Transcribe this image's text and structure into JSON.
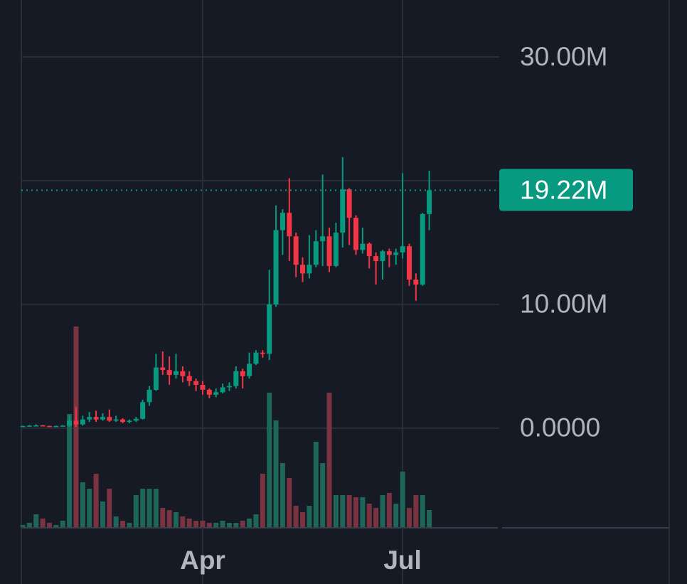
{
  "chart_data": {
    "type": "candlestick",
    "categories": [
      null,
      null,
      null,
      null,
      null,
      null,
      null,
      null,
      null,
      null,
      null,
      null,
      null,
      null,
      null,
      null,
      null,
      null,
      null,
      null,
      null,
      null,
      null,
      null,
      null,
      null,
      null,
      "Apr",
      null,
      null,
      null,
      null,
      null,
      null,
      null,
      null,
      null,
      null,
      null,
      null,
      null,
      null,
      null,
      null,
      null,
      null,
      null,
      null,
      null,
      null,
      null,
      null,
      null,
      null,
      null,
      null,
      null,
      "Jul",
      null,
      null,
      null,
      null
    ],
    "open": [
      0.15,
      0.17,
      0.2,
      0.22,
      0.17,
      0.15,
      0.17,
      0.2,
      0.6,
      0.3,
      0.7,
      0.9,
      0.7,
      0.9,
      0.6,
      0.7,
      0.5,
      0.6,
      0.75,
      2.1,
      3.1,
      4.9,
      4.7,
      4.3,
      4.6,
      4.2,
      3.8,
      3.5,
      3.1,
      2.7,
      2.9,
      3.3,
      3.4,
      4.6,
      4.2,
      5.2,
      6.1,
      6.0,
      10.0,
      16.0,
      17.4,
      15.5,
      13.2,
      12.5,
      13.2,
      15.1,
      15.5,
      13.1,
      15.8,
      19.3,
      17.0,
      14.4,
      14.9,
      13.9,
      13.5,
      14.3,
      14.0,
      14.2,
      14.7,
      12.0,
      11.6,
      17.3
    ],
    "high": [
      0.2,
      0.25,
      0.3,
      0.25,
      0.2,
      0.2,
      0.25,
      1.0,
      1.7,
      1.0,
      1.3,
      1.4,
      1.2,
      1.5,
      1.0,
      0.8,
      0.7,
      0.9,
      2.3,
      3.4,
      6.0,
      6.2,
      5.8,
      6.0,
      5.0,
      4.6,
      4.0,
      3.8,
      3.2,
      3.2,
      3.6,
      3.7,
      5.0,
      4.8,
      6.1,
      6.3,
      6.3,
      12.8,
      18.0,
      17.7,
      20.2,
      15.8,
      13.8,
      15.6,
      16.0,
      20.5,
      16.2,
      16.6,
      21.9,
      19.4,
      17.2,
      16.2,
      15.0,
      14.2,
      14.4,
      14.5,
      14.5,
      20.6,
      14.9,
      12.5,
      17.4,
      20.8
    ],
    "low": [
      0.1,
      0.12,
      0.15,
      0.15,
      0.1,
      0.12,
      0.15,
      0.1,
      0.1,
      0.2,
      0.5,
      0.5,
      0.6,
      0.5,
      0.5,
      0.4,
      0.4,
      0.5,
      0.7,
      1.8,
      3.0,
      4.3,
      3.5,
      4.0,
      3.7,
      3.4,
      3.0,
      2.7,
      2.4,
      2.5,
      2.8,
      3.0,
      3.2,
      3.2,
      4.0,
      5.1,
      5.7,
      5.5,
      9.8,
      14.0,
      13.5,
      12.2,
      11.8,
      12.1,
      13.0,
      13.1,
      12.6,
      13.0,
      14.6,
      14.8,
      14.0,
      14.1,
      12.9,
      11.6,
      12.0,
      13.0,
      13.2,
      13.7,
      11.5,
      10.3,
      11.5,
      16.0
    ],
    "close": [
      0.17,
      0.2,
      0.22,
      0.17,
      0.15,
      0.17,
      0.2,
      0.6,
      0.3,
      0.7,
      0.9,
      0.7,
      0.9,
      0.6,
      0.7,
      0.5,
      0.6,
      0.75,
      2.1,
      3.1,
      4.9,
      4.7,
      4.3,
      4.6,
      4.2,
      3.8,
      3.5,
      3.1,
      2.7,
      2.9,
      3.3,
      3.4,
      4.6,
      4.2,
      5.2,
      6.1,
      6.0,
      10.0,
      16.0,
      17.4,
      15.5,
      13.2,
      12.5,
      13.2,
      15.1,
      15.5,
      13.1,
      15.8,
      19.3,
      17.0,
      14.4,
      14.9,
      13.9,
      13.5,
      14.3,
      14.0,
      14.2,
      14.7,
      12.0,
      11.6,
      17.3,
      19.22
    ],
    "volume": [
      1,
      2,
      6,
      4,
      2,
      1,
      3,
      53,
      94,
      21,
      18,
      25,
      12,
      18,
      5,
      3,
      2,
      15,
      18,
      18,
      18,
      9,
      8,
      7,
      5,
      4,
      3,
      3,
      2,
      2,
      3,
      2,
      2,
      3,
      4,
      6,
      25,
      63,
      50,
      30,
      23,
      10,
      7,
      10,
      40,
      30,
      63,
      15,
      15,
      15,
      14,
      14,
      11,
      9,
      15,
      16,
      11,
      26,
      9,
      15,
      15,
      8
    ],
    "ylim": [
      -8.0,
      34.6
    ],
    "yticks": [
      {
        "value": 0,
        "label": "0.0000"
      },
      {
        "value": 10,
        "label": "10.00M"
      },
      {
        "value": 20,
        "label": null
      },
      {
        "value": 30,
        "label": "30.00M"
      }
    ],
    "volume_lim": [
      0,
      100
    ],
    "current_price": {
      "value": 19.22,
      "label": "19.22M"
    },
    "up_color": "#089981",
    "down_color": "#f23645",
    "volume_up_color": "#1d6658",
    "volume_down_color": "#7a3340",
    "grid": true
  }
}
